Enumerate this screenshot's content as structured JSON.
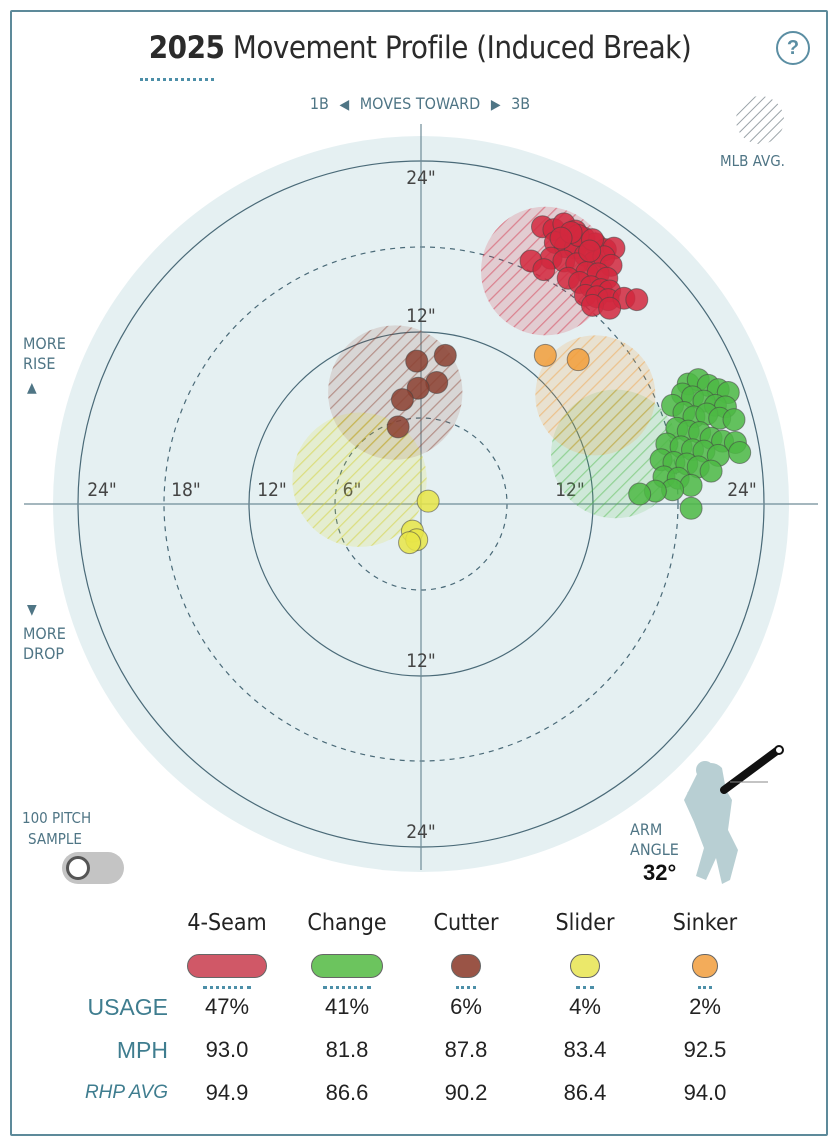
{
  "header": {
    "year": "2025",
    "title": "Movement Profile (Induced Break)",
    "help_icon": "?"
  },
  "direction": {
    "left": "1B",
    "middle": "MOVES TOWARD",
    "right": "3B"
  },
  "side_labels": {
    "rise_line1": "MORE",
    "rise_line2": "RISE",
    "drop_line1": "MORE",
    "drop_line2": "DROP"
  },
  "mlb_avg_label": "MLB AVG.",
  "sample": {
    "line1": "100 PITCH",
    "line2": "SAMPLE",
    "toggle_on": false
  },
  "arm": {
    "line1": "ARM",
    "line2": "ANGLE",
    "value": "32°",
    "angle_deg": 32
  },
  "chart_data": {
    "type": "scatter",
    "title": "2025 Movement Profile (Induced Break)",
    "x_unit": "inches horizontal break (positive toward 3B)",
    "y_unit": "inches induced vertical break",
    "xlim": [
      -24,
      24
    ],
    "ylim": [
      -24,
      24
    ],
    "ring_labels": [
      "6\"",
      "12\"",
      "18\"",
      "24\""
    ],
    "axis_labels": {
      "top": "24\"",
      "mid_top": "12\"",
      "mid_bottom": "12\"",
      "bottom": "24\"",
      "left_24": "24\"",
      "left_18": "18\"",
      "left_12": "12\"",
      "left_6": "6\"",
      "right_12": "12\"",
      "right_24": "24\""
    },
    "series": [
      {
        "name": "4-Seam",
        "color": "#d2283e",
        "mlb_avg": {
          "x": 8.7,
          "y": 16.3,
          "r": 4.5
        },
        "points": [
          [
            8.5,
            19.4
          ],
          [
            9.3,
            19.2
          ],
          [
            10.0,
            19.6
          ],
          [
            10.8,
            19.1
          ],
          [
            11.4,
            18.6
          ],
          [
            12.2,
            18.2
          ],
          [
            12.9,
            17.8
          ],
          [
            13.5,
            17.9
          ],
          [
            9.4,
            18.3
          ],
          [
            10.1,
            18.0
          ],
          [
            10.8,
            17.9
          ],
          [
            11.5,
            17.4
          ],
          [
            12.1,
            16.9
          ],
          [
            12.8,
            17.3
          ],
          [
            13.3,
            16.7
          ],
          [
            9.1,
            17.2
          ],
          [
            10.0,
            17.0
          ],
          [
            10.9,
            16.8
          ],
          [
            11.6,
            16.2
          ],
          [
            12.4,
            16.1
          ],
          [
            13.0,
            15.8
          ],
          [
            10.3,
            15.8
          ],
          [
            11.1,
            15.5
          ],
          [
            11.9,
            15.2
          ],
          [
            12.6,
            15.0
          ],
          [
            13.2,
            14.9
          ],
          [
            11.5,
            14.6
          ],
          [
            12.3,
            14.5
          ],
          [
            13.1,
            14.3
          ],
          [
            14.2,
            14.4
          ],
          [
            15.1,
            14.3
          ],
          [
            12.0,
            13.9
          ],
          [
            13.2,
            13.7
          ],
          [
            7.7,
            17.0
          ],
          [
            8.6,
            16.4
          ],
          [
            11.0,
            18.8
          ],
          [
            12.0,
            18.5
          ],
          [
            10.5,
            19.0
          ],
          [
            9.8,
            18.6
          ],
          [
            11.8,
            17.7
          ]
        ]
      },
      {
        "name": "Change",
        "color": "#4cb944",
        "mlb_avg": {
          "x": 13.6,
          "y": 3.5,
          "r": 4.5
        },
        "points": [
          [
            18.7,
            8.4
          ],
          [
            19.4,
            8.7
          ],
          [
            20.1,
            8.3
          ],
          [
            20.8,
            8.0
          ],
          [
            21.5,
            7.8
          ],
          [
            18.3,
            7.7
          ],
          [
            19.0,
            7.5
          ],
          [
            19.8,
            7.2
          ],
          [
            20.6,
            6.9
          ],
          [
            21.3,
            6.8
          ],
          [
            17.6,
            6.9
          ],
          [
            18.4,
            6.4
          ],
          [
            19.1,
            6.1
          ],
          [
            20.0,
            6.3
          ],
          [
            20.9,
            6.0
          ],
          [
            21.9,
            5.9
          ],
          [
            17.9,
            5.3
          ],
          [
            18.7,
            5.1
          ],
          [
            19.5,
            5.0
          ],
          [
            20.3,
            4.6
          ],
          [
            21.1,
            4.4
          ],
          [
            22.0,
            4.3
          ],
          [
            17.2,
            4.2
          ],
          [
            18.2,
            4.0
          ],
          [
            19.0,
            3.8
          ],
          [
            19.8,
            3.7
          ],
          [
            20.8,
            3.4
          ],
          [
            22.3,
            3.6
          ],
          [
            16.8,
            3.1
          ],
          [
            17.7,
            2.9
          ],
          [
            18.6,
            2.8
          ],
          [
            19.4,
            2.6
          ],
          [
            20.3,
            2.3
          ],
          [
            17.0,
            1.9
          ],
          [
            18.0,
            1.8
          ],
          [
            18.9,
            1.3
          ],
          [
            17.6,
            1.0
          ],
          [
            16.4,
            0.9
          ],
          [
            15.3,
            0.7
          ],
          [
            18.9,
            -0.3
          ]
        ]
      },
      {
        "name": "Cutter",
        "color": "#8b4030",
        "mlb_avg": {
          "x": -1.8,
          "y": 7.8,
          "r": 4.7
        },
        "points": [
          [
            1.7,
            10.4
          ],
          [
            -0.3,
            10.0
          ],
          [
            1.1,
            8.5
          ],
          [
            -0.2,
            8.1
          ],
          [
            -1.3,
            7.3
          ],
          [
            -1.6,
            5.4
          ]
        ]
      },
      {
        "name": "Slider",
        "color": "#e8e548",
        "mlb_avg": {
          "x": -4.3,
          "y": 1.7,
          "r": 4.7
        },
        "points": [
          [
            0.5,
            0.2
          ],
          [
            -0.6,
            -1.9
          ],
          [
            -0.3,
            -2.5
          ],
          [
            -0.8,
            -2.7
          ]
        ]
      },
      {
        "name": "Sinker",
        "color": "#f29e3a",
        "mlb_avg": {
          "x": 12.2,
          "y": 7.6,
          "r": 4.2
        },
        "points": [
          [
            8.7,
            10.4
          ],
          [
            11.0,
            10.1
          ]
        ]
      }
    ]
  },
  "table": {
    "row_labels": {
      "usage": "USAGE",
      "mph": "MPH",
      "rhp_avg": "RHP AVG"
    },
    "pitches": [
      {
        "name": "4-Seam",
        "color": "#d05867",
        "usage": "47%",
        "mph": "93.0",
        "rhp_avg": "94.9"
      },
      {
        "name": "Change",
        "color": "#6cc45e",
        "usage": "41%",
        "mph": "81.8",
        "rhp_avg": "86.6"
      },
      {
        "name": "Cutter",
        "color": "#9a5446",
        "usage": "6%",
        "mph": "87.8",
        "rhp_avg": "90.2"
      },
      {
        "name": "Slider",
        "color": "#ebe86a",
        "usage": "4%",
        "mph": "83.4",
        "rhp_avg": "86.4"
      },
      {
        "name": "Sinker",
        "color": "#f3ac5a",
        "usage": "2%",
        "mph": "92.5",
        "rhp_avg": "94.0"
      }
    ]
  }
}
